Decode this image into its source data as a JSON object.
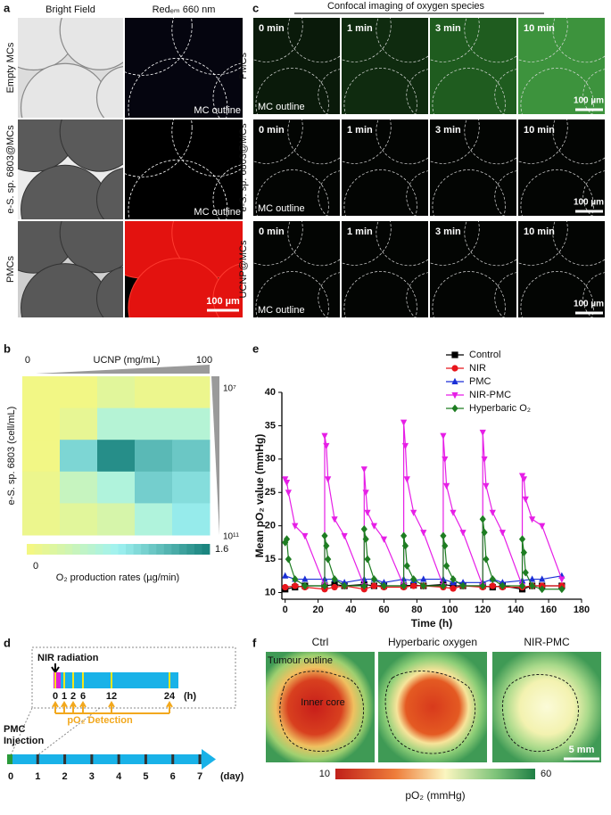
{
  "figure": {
    "panel_labels": [
      "a",
      "b",
      "c",
      "d",
      "e",
      "f"
    ],
    "a": {
      "columns": [
        "Bright Field",
        "Redₑₘ 660 nm"
      ],
      "rows": [
        "Empty MCs",
        "e-S. sp. 6803@MCs",
        "PMCs"
      ],
      "outline_labels": [
        "MC outline",
        "MC outline"
      ],
      "scale_bar": "100 µm"
    },
    "c": {
      "title": "Confocal imaging of oxygen species",
      "rows": [
        "PMCs",
        "e-S. sp. 6803@MCs",
        "UCNP@MCs"
      ],
      "times": [
        "0 min",
        "1 min",
        "3 min",
        "10 min"
      ],
      "outline_labels": [
        "MC outline",
        "MC outline",
        "MC outline"
      ],
      "scale_bars": [
        "100 µm",
        "100 µm",
        "100 µm"
      ]
    },
    "d": {
      "nir_label": "NIR radiation",
      "hour_ticks": [
        "0",
        "1",
        "2",
        "6",
        "12",
        "24"
      ],
      "hour_unit": "(h)",
      "detection_label": "pO₂ Detection",
      "injection_label": [
        "PMC",
        "Injection"
      ],
      "day_ticks": [
        0,
        1,
        2,
        3,
        4,
        5,
        6,
        7
      ],
      "day_unit": "(day)"
    },
    "f": {
      "titles": [
        "Ctrl",
        "Hyperbaric oxygen",
        "NIR-PMC"
      ],
      "tumour_label": "Tumour outline",
      "core_label": "Inner core",
      "scale_bar": "5 mm",
      "colorbar_ticks": [
        10,
        60
      ],
      "colorbar_label": "pO₂ (mmHg)"
    }
  },
  "chart_data": [
    {
      "type": "heatmap",
      "x_label": "UCNP (mg/mL)",
      "xlim": [
        0,
        100
      ],
      "xticks": [
        0,
        100
      ],
      "y_label": "e-S. sp. 6803 (cell/mL)",
      "log_y": true,
      "ylim": [
        10000000,
        100000000000
      ],
      "yticks": [
        {
          "value": 10000000,
          "label": "10⁷"
        },
        {
          "value": 100000000000,
          "label": "10¹¹"
        }
      ],
      "values": [
        [
          0.05,
          0.05,
          0.2,
          0.1,
          0.1
        ],
        [
          0.05,
          0.15,
          0.6,
          0.6,
          0.6
        ],
        [
          0.05,
          1.0,
          1.5,
          1.2,
          1.1
        ],
        [
          0.1,
          0.45,
          0.65,
          1.05,
          0.95
        ],
        [
          0.1,
          0.2,
          0.3,
          0.65,
          0.85
        ]
      ],
      "clim": [
        0,
        1.6
      ],
      "colorbar_ticks": [
        0,
        1.6
      ],
      "colorbar_label": "O₂ production rates (µg/min)",
      "colors": [
        "#f7f77e",
        "#9ff2f2",
        "#15807a"
      ]
    },
    {
      "type": "line",
      "xlabel": "Time (h)",
      "ylabel": "Mean pO₂ value (mmHg)",
      "xlim": [
        -2,
        180
      ],
      "xticks": [
        0,
        20,
        40,
        60,
        80,
        100,
        120,
        140,
        160,
        180
      ],
      "ylim": [
        9,
        40
      ],
      "yticks": [
        10,
        15,
        20,
        25,
        30,
        35,
        40
      ],
      "legend": "upper right",
      "series": [
        {
          "name": "Control",
          "color": "#000000",
          "marker": "square",
          "x": [
            0,
            6,
            12,
            24,
            30,
            36,
            48,
            54,
            60,
            72,
            78,
            84,
            96,
            102,
            108,
            120,
            126,
            132,
            144,
            150,
            156,
            168
          ],
          "values": [
            10.5,
            10.8,
            11,
            11,
            11.2,
            11,
            11.2,
            11,
            11,
            11,
            11.1,
            11,
            11.2,
            11,
            11,
            11,
            10.8,
            11,
            10.5,
            11,
            11,
            11
          ]
        },
        {
          "name": "NIR",
          "color": "#e8151b",
          "marker": "circle",
          "x": [
            0,
            6,
            12,
            24,
            30,
            36,
            48,
            54,
            60,
            72,
            78,
            84,
            96,
            102,
            108,
            120,
            126,
            132,
            144,
            150,
            156,
            168
          ],
          "values": [
            10.8,
            11,
            10.8,
            10.5,
            10.8,
            11,
            10.5,
            11,
            10.8,
            10.8,
            11,
            11,
            10.8,
            10.6,
            11,
            10.8,
            11,
            10.8,
            10.8,
            11,
            11,
            11
          ]
        },
        {
          "name": "PMC",
          "color": "#1a2fd6",
          "marker": "triangle-up",
          "x": [
            0,
            6,
            12,
            24,
            30,
            36,
            48,
            54,
            60,
            72,
            78,
            84,
            96,
            102,
            108,
            120,
            126,
            132,
            144,
            150,
            156,
            168
          ],
          "values": [
            12.5,
            12,
            12,
            12,
            12,
            11.5,
            12,
            12,
            11.5,
            12,
            11.8,
            12,
            12,
            11.5,
            11.5,
            11.5,
            12,
            11.5,
            11.8,
            12,
            12,
            12.5
          ]
        },
        {
          "name": "NIR-PMC",
          "color": "#e61fe6",
          "marker": "triangle-down",
          "x": [
            0,
            1,
            2,
            6,
            12,
            24,
            24,
            25,
            26,
            30,
            36,
            48,
            48,
            49,
            50,
            54,
            60,
            72,
            72,
            73,
            74,
            78,
            84,
            96,
            96,
            97,
            98,
            102,
            108,
            120,
            120,
            121,
            122,
            126,
            132,
            144,
            144,
            145,
            146,
            150,
            156,
            168
          ],
          "values": [
            27,
            26.5,
            25,
            20,
            18.5,
            11,
            33.5,
            32,
            27,
            21,
            18.5,
            11,
            28.5,
            25,
            22,
            20,
            18,
            11,
            35.5,
            32,
            27,
            22,
            19,
            11,
            33.5,
            30,
            26,
            22,
            19,
            11,
            34,
            30,
            26,
            22,
            19,
            11,
            27.5,
            27,
            24,
            21,
            20,
            12
          ]
        },
        {
          "name": "Hyperbaric O₂",
          "color": "#1e7d22",
          "marker": "diamond",
          "x": [
            0,
            1,
            2,
            6,
            12,
            24,
            24,
            25,
            26,
            30,
            36,
            48,
            48,
            49,
            50,
            54,
            60,
            72,
            72,
            73,
            74,
            78,
            84,
            96,
            96,
            97,
            98,
            102,
            108,
            120,
            120,
            121,
            122,
            126,
            132,
            144,
            144,
            145,
            146,
            150,
            156,
            168
          ],
          "values": [
            17.5,
            18,
            15,
            12,
            11,
            11,
            18.5,
            17,
            15,
            12,
            11,
            11,
            19.5,
            18,
            15,
            12,
            11,
            11,
            18.5,
            17,
            14,
            12,
            11,
            11,
            18.5,
            17,
            14,
            12,
            11,
            11,
            21,
            19,
            15,
            12,
            11,
            11,
            18,
            16,
            13,
            11,
            10.5,
            10.5
          ]
        }
      ]
    }
  ]
}
